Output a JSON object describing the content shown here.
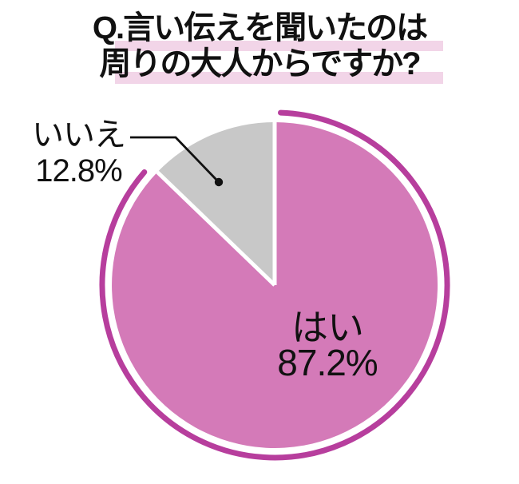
{
  "title": {
    "line1": "Q.言い伝えを聞いたのは",
    "line2": "周りの大人からですか?"
  },
  "labels": {
    "yes_name": "はい",
    "yes_value": "87.2%",
    "no_name": "いいえ",
    "no_value": "12.8%"
  },
  "chart_data": {
    "type": "pie",
    "title": "Q.言い伝えを聞いたのは周りの大人からですか?",
    "unit": "%",
    "start_angle_deg": 0,
    "direction": "clockwise",
    "legend": false,
    "slices": [
      {
        "label": "はい",
        "value": 87.2,
        "color": "#d47ab8",
        "label_position": "inside"
      },
      {
        "label": "いいえ",
        "value": 12.8,
        "color": "#c8c8c8",
        "label_position": "outside-with-leader-line"
      }
    ],
    "decorations": {
      "outer_accent_arc": "partial ring around the はい slice only, rounded caps",
      "slice_separator_color": "#ffffff"
    }
  },
  "colors": {
    "pie_yes": "#d47ab8",
    "pie_no": "#c8c8c8",
    "ring": "#b73e9d",
    "title_highlight": "#f2d5e8",
    "text": "#111111",
    "background": "#ffffff"
  }
}
